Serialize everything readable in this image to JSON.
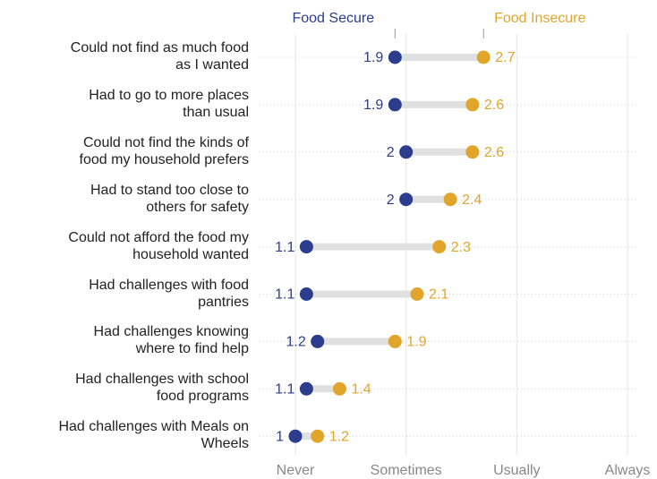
{
  "chart_data": {
    "type": "dumbbell",
    "categories": [
      "Could not find as much food\nas I wanted",
      "Had to go to more places\nthan usual",
      "Could not find the kinds of\nfood my household prefers",
      "Had to stand too close to\nothers for safety",
      "Could not afford the food my\nhousehold wanted",
      "Had challenges with food\npantries",
      "Had challenges knowing\nwhere to find help",
      "Had challenges with school\nfood programs",
      "Had challenges with Meals on\nWheels"
    ],
    "series": [
      {
        "name": "Food Secure",
        "color": "#2b3d8c",
        "values": [
          1.9,
          1.9,
          2,
          2,
          1.1,
          1.1,
          1.2,
          1.1,
          1
        ]
      },
      {
        "name": "Food Insecure",
        "color": "#e2a52c",
        "values": [
          2.7,
          2.6,
          2.6,
          2.4,
          2.3,
          2.1,
          1.9,
          1.4,
          1.2
        ]
      }
    ],
    "xlim": [
      1,
      4
    ],
    "xticks": [
      {
        "value": 1,
        "label": "Never"
      },
      {
        "value": 2,
        "label": "Sometimes"
      },
      {
        "value": 3,
        "label": "Usually"
      },
      {
        "value": 4,
        "label": "Always"
      }
    ],
    "grid": true
  }
}
